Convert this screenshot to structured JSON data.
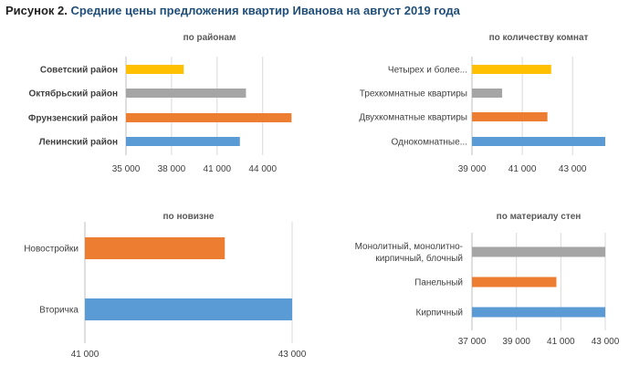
{
  "figure": {
    "title_lead": "Рисунок 2.",
    "title_rest": "Средние цены предложения квартир Иванова на август 2019 года"
  },
  "chart_data": [
    {
      "type": "bar",
      "orientation": "horizontal",
      "title": "по районам",
      "categories": [
        "Советский район",
        "Октябрьский район",
        "Фрунзенский район",
        "Ленинский район"
      ],
      "values": [
        38800,
        42900,
        45900,
        42500
      ],
      "colors": [
        "#ffc000",
        "#a5a5a5",
        "#ed7d31",
        "#5b9bd5"
      ],
      "xlim": [
        35000,
        46000
      ],
      "ticks": [
        35000,
        38000,
        41000,
        44000
      ],
      "tick_labels": [
        "35 000",
        "38 000",
        "41 000",
        "44 000"
      ],
      "category_labels_bold": true,
      "grid": true
    },
    {
      "type": "bar",
      "orientation": "horizontal",
      "title": "по количеству комнат",
      "categories": [
        "Четырех и более...",
        "Трехкомнатные квартиры",
        "Двухкомнатные квартиры",
        "Однокомнатные..."
      ],
      "values": [
        42150,
        40200,
        42000,
        44300
      ],
      "colors": [
        "#ffc000",
        "#a5a5a5",
        "#ed7d31",
        "#5b9bd5"
      ],
      "xlim": [
        39000,
        44300
      ],
      "ticks": [
        39000,
        41000,
        43000
      ],
      "tick_labels": [
        "39 000",
        "41 000",
        "43 000"
      ],
      "category_labels_bold": false,
      "grid": true
    },
    {
      "type": "bar",
      "orientation": "horizontal",
      "title": "по новизне",
      "categories": [
        "Новостройки",
        "Вторичка"
      ],
      "values": [
        42350,
        43000
      ],
      "colors": [
        "#ed7d31",
        "#5b9bd5"
      ],
      "xlim": [
        41000,
        43000
      ],
      "ticks": [
        41000,
        43000
      ],
      "tick_labels": [
        "41 000",
        "43 000"
      ],
      "category_labels_bold": false,
      "grid": true
    },
    {
      "type": "bar",
      "orientation": "horizontal",
      "title": "по материалу стен",
      "categories": [
        [
          "Монолитный, монолитно-",
          "кирпичный, блочный"
        ],
        "Панельный",
        "Кирпичный"
      ],
      "values": [
        43000,
        40800,
        43000
      ],
      "colors": [
        "#a5a5a5",
        "#ed7d31",
        "#5b9bd5"
      ],
      "xlim": [
        37000,
        43000
      ],
      "ticks": [
        37000,
        39000,
        41000,
        43000
      ],
      "tick_labels": [
        "37 000",
        "39 000",
        "41 000",
        "43 000"
      ],
      "category_labels_bold": false,
      "grid": true
    }
  ]
}
